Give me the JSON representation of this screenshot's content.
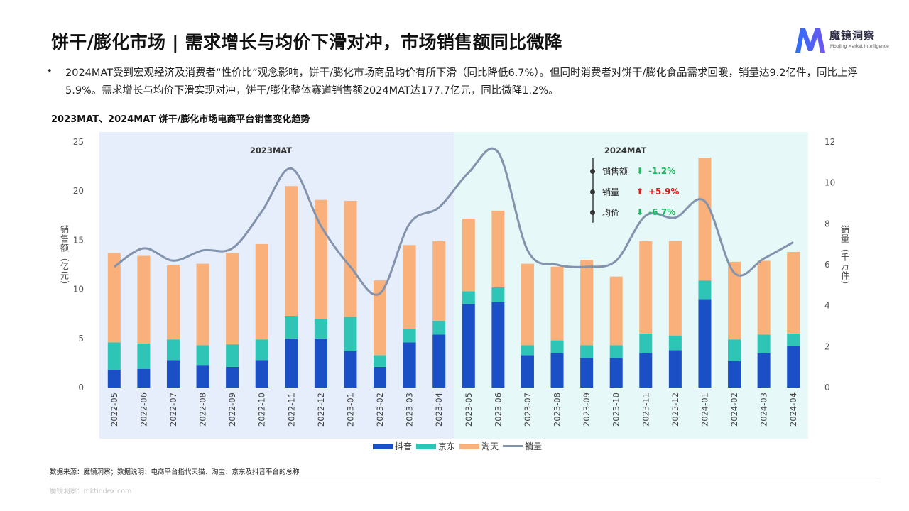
{
  "header": {
    "title": "饼干/膨化市场 | 需求增长与均价下滑对冲，市场销售额同比微降",
    "logo_cn": "魔镜洞察",
    "logo_en": "Moojing Market Intelligence"
  },
  "bullet": {
    "dot": "•",
    "text": "2024MAT受到宏观经济及消费者“性价比”观念影响，饼干/膨化市场商品均价有所下滑（同比降低6.7%）。但同时消费者对饼干/膨化食品需求回暖，销量达9.2亿件，同比上浮5.9%。需求增长与均价下滑实现对冲，饼干/膨化整体赛道销售额2024MAT达177.7亿元，同比微降1.2%。"
  },
  "chart_title": "2023MAT、2024MAT 饼干/膨化市场电商平台销售变化趋势",
  "chart_data": {
    "type": "bar",
    "stacked": true,
    "categories": [
      "2022-05",
      "2022-06",
      "2022-07",
      "2022-08",
      "2022-09",
      "2022-10",
      "2022-11",
      "2022-12",
      "2023-01",
      "2023-02",
      "2023-03",
      "2023-04",
      "2023-05",
      "2023-06",
      "2023-07",
      "2023-08",
      "2023-09",
      "2023-10",
      "2023-11",
      "2023-12",
      "2024-01",
      "2024-02",
      "2024-03",
      "2024-04"
    ],
    "series": [
      {
        "name": "抖音",
        "color": "#1a4fc5",
        "values": [
          1.8,
          1.9,
          2.8,
          2.3,
          2.1,
          2.8,
          5.0,
          5.0,
          3.7,
          2.1,
          4.6,
          5.4,
          8.5,
          8.7,
          3.3,
          3.5,
          3.0,
          3.0,
          3.5,
          3.8,
          9.0,
          2.7,
          3.5,
          4.2
        ]
      },
      {
        "name": "京东",
        "color": "#2ec4b6",
        "values": [
          2.8,
          2.6,
          2.1,
          2.0,
          2.3,
          2.1,
          2.3,
          2.0,
          3.5,
          1.2,
          1.4,
          1.4,
          1.3,
          1.5,
          1.0,
          1.3,
          1.3,
          1.3,
          2.0,
          1.5,
          1.9,
          2.2,
          1.9,
          1.3
        ]
      },
      {
        "name": "淘天",
        "color": "#f9b07a",
        "values": [
          9.1,
          8.9,
          7.6,
          8.3,
          9.3,
          9.7,
          13.2,
          12.1,
          11.8,
          7.6,
          8.5,
          8.1,
          7.4,
          7.8,
          8.3,
          7.5,
          8.7,
          7.0,
          9.4,
          9.6,
          12.5,
          7.9,
          7.5,
          8.3
        ]
      }
    ],
    "line": {
      "name": "销量",
      "color": "#8393ad",
      "values": [
        5.9,
        6.8,
        6.2,
        6.7,
        6.8,
        8.6,
        10.7,
        7.9,
        5.9,
        4.6,
        8.0,
        8.8,
        10.5,
        11.5,
        6.7,
        6.0,
        5.9,
        6.2,
        8.4,
        8.3,
        9.1,
        5.6,
        6.3,
        7.1
      ]
    },
    "ylabel_left": "销售额（亿元）",
    "ylabel_right": "销量（千万件）",
    "ylim_left": [
      0,
      25
    ],
    "ylim_right": [
      0,
      12
    ],
    "yticks_left": [
      0,
      5,
      10,
      15,
      20,
      25
    ],
    "yticks_right": [
      0,
      2,
      4,
      6,
      8,
      10,
      12
    ],
    "periods": [
      {
        "label": "2023MAT",
        "start": "2022-05",
        "end": "2023-04",
        "color": "#e6eefb"
      },
      {
        "label": "2024MAT",
        "start": "2023-05",
        "end": "2024-04",
        "color": "#e6f8f7"
      }
    ],
    "grid": false,
    "legend": "bottom-center"
  },
  "annotation": [
    {
      "label": "销售额",
      "arrow": "⬇",
      "value": "-1.2%",
      "color": "#18b85c"
    },
    {
      "label": "销量",
      "arrow": "⬆",
      "value": "+5.9%",
      "color": "#e01e1e"
    },
    {
      "label": "均价",
      "arrow": "⬇",
      "value": "-6.7%",
      "color": "#18b85c"
    }
  ],
  "footer": {
    "source": "数据来源：魔镜洞察；数据说明：电商平台指代天猫、淘宝、京东及抖音平台的总称",
    "watermark": "魔镜洞察：mktindex.com"
  }
}
